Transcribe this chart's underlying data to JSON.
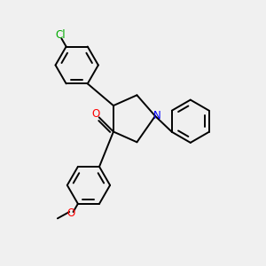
{
  "bg_color": "#f0f0f0",
  "bond_color": "#000000",
  "bond_width": 1.4,
  "atom_colors": {
    "N": "#0000ff",
    "O": "#ff0000",
    "Cl": "#00aa00"
  },
  "font_size": 8.5
}
